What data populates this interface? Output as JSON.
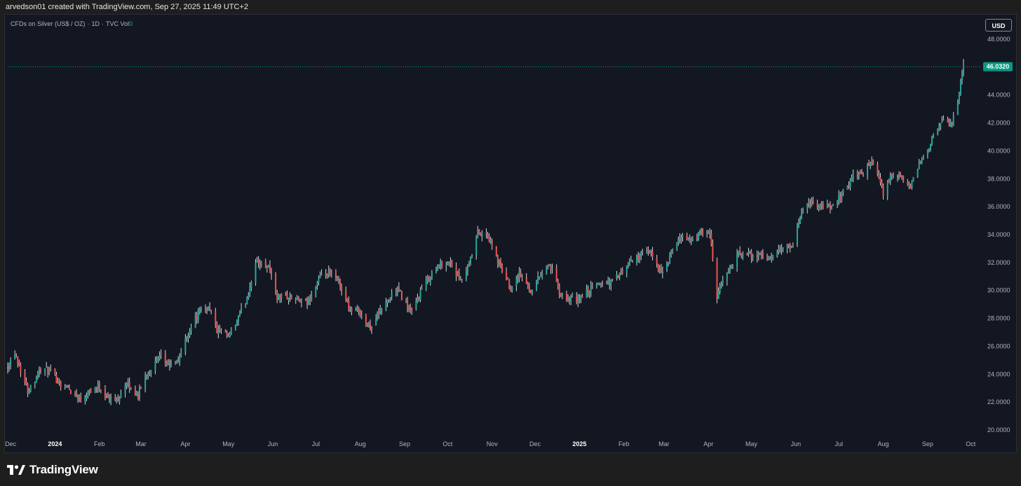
{
  "header": {
    "attribution": "arvedson01 created with TradingView.com, Sep 27, 2025 11:49 UTC+2"
  },
  "legend": {
    "symbol": "CFDs on Silver (US$ / OZ)",
    "interval": "1D",
    "source": "TVC",
    "vol_label": "Vol",
    "vol_value": "0"
  },
  "currency_button": "USD",
  "price_label": "46.0320",
  "footer": {
    "brand": "TradingView",
    "logo_icon": "tradingview-logo-icon"
  },
  "colors": {
    "background": "#131722",
    "up": "#26a69a",
    "down": "#ef5350",
    "wick": "#d1d4dc",
    "price_label_bg": "#089981"
  },
  "chart_data": {
    "type": "candlestick",
    "title": "CFDs on Silver (US$ / OZ) · 1D · TVC",
    "ylabel": "USD",
    "ylim": [
      19.5,
      48.5
    ],
    "y_ticks": [
      "20.0000",
      "22.0000",
      "24.0000",
      "26.0000",
      "28.0000",
      "30.0000",
      "32.0000",
      "34.0000",
      "36.0000",
      "38.0000",
      "40.0000",
      "42.0000",
      "44.0000",
      "46.0000",
      "48.0000"
    ],
    "x_ticks": [
      "Dec",
      "2024",
      "Feb",
      "Mar",
      "Apr",
      "May",
      "Jun",
      "Jul",
      "Aug",
      "Sep",
      "Oct",
      "Nov",
      "Dec",
      "2025",
      "Feb",
      "Mar",
      "Apr",
      "May",
      "Jun",
      "Jul",
      "Aug",
      "Sep",
      "Oct"
    ],
    "x_range": [
      "2023-11-29",
      "2025-09-26"
    ],
    "last_price": 46.032,
    "grid": false,
    "series": [
      {
        "anchors": [
          [
            "2023-11-29",
            24.6
          ],
          [
            "2023-12-04",
            25.6
          ],
          [
            "2023-12-13",
            22.8
          ],
          [
            "2023-12-22",
            24.4
          ],
          [
            "2023-12-28",
            24.2
          ],
          [
            "2024-01-05",
            23.3
          ],
          [
            "2024-01-10",
            23.0
          ],
          [
            "2024-01-19",
            22.2
          ],
          [
            "2024-01-24",
            22.8
          ],
          [
            "2024-02-01",
            23.1
          ],
          [
            "2024-02-08",
            22.2
          ],
          [
            "2024-02-13",
            22.1
          ],
          [
            "2024-02-19",
            23.3
          ],
          [
            "2024-02-28",
            22.5
          ],
          [
            "2024-03-05",
            24.1
          ],
          [
            "2024-03-15",
            25.2
          ],
          [
            "2024-03-20",
            24.7
          ],
          [
            "2024-03-26",
            24.8
          ],
          [
            "2024-04-05",
            27.5
          ],
          [
            "2024-04-12",
            28.6
          ],
          [
            "2024-04-18",
            28.8
          ],
          [
            "2024-04-23",
            27.1
          ],
          [
            "2024-05-01",
            26.6
          ],
          [
            "2024-05-08",
            28.0
          ],
          [
            "2024-05-14",
            29.5
          ],
          [
            "2024-05-20",
            32.0
          ],
          [
            "2024-05-29",
            31.8
          ],
          [
            "2024-06-04",
            29.5
          ],
          [
            "2024-06-10",
            29.6
          ],
          [
            "2024-06-18",
            29.3
          ],
          [
            "2024-06-25",
            29.0
          ],
          [
            "2024-07-03",
            30.8
          ],
          [
            "2024-07-10",
            31.2
          ],
          [
            "2024-07-17",
            30.6
          ],
          [
            "2024-07-25",
            28.6
          ],
          [
            "2024-08-01",
            28.5
          ],
          [
            "2024-08-07",
            27.3
          ],
          [
            "2024-08-14",
            28.4
          ],
          [
            "2024-08-21",
            29.4
          ],
          [
            "2024-08-27",
            30.1
          ],
          [
            "2024-09-06",
            28.3
          ],
          [
            "2024-09-12",
            29.9
          ],
          [
            "2024-09-20",
            31.2
          ],
          [
            "2024-09-26",
            31.9
          ],
          [
            "2024-10-03",
            32.0
          ],
          [
            "2024-10-10",
            30.6
          ],
          [
            "2024-10-16",
            31.8
          ],
          [
            "2024-10-22",
            34.1
          ],
          [
            "2024-10-29",
            33.9
          ],
          [
            "2024-11-05",
            32.1
          ],
          [
            "2024-11-14",
            30.2
          ],
          [
            "2024-11-20",
            31.2
          ],
          [
            "2024-11-28",
            30.0
          ],
          [
            "2024-12-05",
            31.2
          ],
          [
            "2024-12-11",
            31.9
          ],
          [
            "2024-12-19",
            29.6
          ],
          [
            "2024-12-30",
            29.2
          ],
          [
            "2025-01-06",
            29.9
          ],
          [
            "2025-01-15",
            30.5
          ],
          [
            "2025-01-23",
            30.6
          ],
          [
            "2025-01-31",
            31.3
          ],
          [
            "2025-02-07",
            32.2
          ],
          [
            "2025-02-14",
            32.6
          ],
          [
            "2025-02-20",
            32.7
          ],
          [
            "2025-02-28",
            31.1
          ],
          [
            "2025-03-06",
            32.6
          ],
          [
            "2025-03-14",
            34.0
          ],
          [
            "2025-03-20",
            33.4
          ],
          [
            "2025-03-27",
            34.2
          ],
          [
            "2025-04-02",
            34.0
          ],
          [
            "2025-04-07",
            29.5
          ],
          [
            "2025-04-11",
            30.8
          ],
          [
            "2025-04-22",
            32.6
          ],
          [
            "2025-04-30",
            32.5
          ],
          [
            "2025-05-07",
            32.6
          ],
          [
            "2025-05-15",
            32.2
          ],
          [
            "2025-05-23",
            33.1
          ],
          [
            "2025-05-30",
            33.0
          ],
          [
            "2025-06-05",
            35.8
          ],
          [
            "2025-06-11",
            36.3
          ],
          [
            "2025-06-19",
            36.1
          ],
          [
            "2025-06-26",
            35.9
          ],
          [
            "2025-07-04",
            37.0
          ],
          [
            "2025-07-11",
            38.2
          ],
          [
            "2025-07-18",
            38.4
          ],
          [
            "2025-07-23",
            39.2
          ],
          [
            "2025-07-29",
            38.0
          ],
          [
            "2025-08-01",
            37.0
          ],
          [
            "2025-08-08",
            38.4
          ],
          [
            "2025-08-14",
            37.9
          ],
          [
            "2025-08-20",
            37.4
          ],
          [
            "2025-08-29",
            39.7
          ],
          [
            "2025-09-05",
            41.0
          ],
          [
            "2025-09-12",
            42.2
          ],
          [
            "2025-09-17",
            41.8
          ],
          [
            "2025-09-23",
            44.0
          ],
          [
            "2025-09-26",
            46.0
          ]
        ]
      }
    ]
  }
}
